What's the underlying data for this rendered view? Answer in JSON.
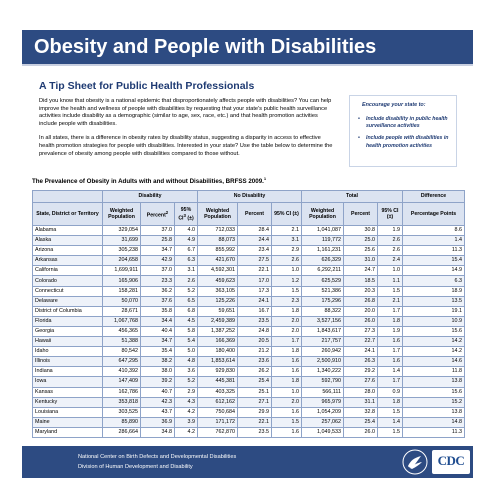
{
  "header": {
    "title": "Obesity and People with Disabilities",
    "subtitle": "A Tip Sheet for Public Health Professionals"
  },
  "intro": {
    "paragraph1": "Did you know that obesity is a national epidemic that disproportionately affects people with disabilities? You can help improve the health and wellness of people with disabilities by requesting that your state's public health surveillance activities include disability as a demographic (similar to age, sex, race, etc.) and that health promotion activities include people with disabilities.",
    "paragraph2": "In all states, there is a difference in obesity rates by disability status, suggesting a disparity in access to effective health promotion strategies for people with disabilities. Interested in your state? Use the table below to determine the prevalence of obesity among people with disabilities compared to those without."
  },
  "sidebar": {
    "title": "Encourage your state to:",
    "items": [
      "Include disability in public health surveillance activities",
      "Include people with disabilities in health promotion activities"
    ]
  },
  "table": {
    "title": "The Prevalence of Obesity in Adults with and without Disabilities, BRFSS 2009.",
    "title_note": "1",
    "groups": {
      "disability": "Disability",
      "no_disability": "No Disability",
      "total": "Total",
      "difference": "Difference"
    },
    "columns": {
      "state": "State, District or Territory",
      "dis_weighted": "Weighted Population",
      "dis_percent": "Percent",
      "dis_percent_note": "2",
      "dis_ci": "95% CI",
      "dis_ci_note": "3",
      "dis_ci_unit": "(±)",
      "nodis_weighted": "Weighted Population",
      "nodis_percent": "Percent",
      "nodis_ci": "95% CI (±)",
      "tot_weighted": "Weighted Population",
      "tot_percent": "Percent",
      "tot_ci": "95% CI (±)",
      "diff_points": "Percentage Points"
    },
    "rows": [
      [
        "Alabama",
        "329,054",
        "37.0",
        "4.0",
        "712,033",
        "28.4",
        "2.1",
        "1,041,087",
        "30.8",
        "1.9",
        "8.6"
      ],
      [
        "Alaska",
        "31,699",
        "25.8",
        "4.9",
        "88,073",
        "24.4",
        "3.1",
        "119,772",
        "25.0",
        "2.6",
        "1.4"
      ],
      [
        "Arizona",
        "305,238",
        "34.7",
        "6.7",
        "855,992",
        "23.4",
        "2.9",
        "1,161,231",
        "25.6",
        "2.6",
        "11.3"
      ],
      [
        "Arkansas",
        "204,658",
        "42.9",
        "6.3",
        "421,670",
        "27.5",
        "2.6",
        "626,329",
        "31.0",
        "2.4",
        "15.4"
      ],
      [
        "California",
        "1,699,911",
        "37.0",
        "3.1",
        "4,592,301",
        "22.1",
        "1.0",
        "6,292,211",
        "24.7",
        "1.0",
        "14.9"
      ],
      [
        "Colorado",
        "165,906",
        "23.3",
        "2.6",
        "459,623",
        "17.0",
        "1.2",
        "625,529",
        "18.5",
        "1.1",
        "6.3"
      ],
      [
        "Connecticut",
        "158,281",
        "36.2",
        "5.2",
        "363,105",
        "17.3",
        "1.5",
        "521,386",
        "20.3",
        "1.5",
        "18.9"
      ],
      [
        "Delaware",
        "50,070",
        "37.6",
        "6.5",
        "125,226",
        "24.1",
        "2.3",
        "175,296",
        "26.8",
        "2.1",
        "13.5"
      ],
      [
        "District of Columbia",
        "28,671",
        "35.8",
        "6.8",
        "59,651",
        "16.7",
        "1.8",
        "88,322",
        "20.0",
        "1.7",
        "19.1"
      ],
      [
        "Florida",
        "1,067,768",
        "34.4",
        "4.5",
        "2,459,389",
        "23.5",
        "2.0",
        "3,527,156",
        "26.0",
        "1.8",
        "10.9"
      ],
      [
        "Georgia",
        "456,365",
        "40.4",
        "5.8",
        "1,387,252",
        "24.8",
        "2.0",
        "1,843,617",
        "27.3",
        "1.9",
        "15.6"
      ],
      [
        "Hawaii",
        "51,388",
        "34.7",
        "5.4",
        "166,369",
        "20.5",
        "1.7",
        "217,757",
        "22.7",
        "1.6",
        "14.2"
      ],
      [
        "Idaho",
        "80,542",
        "35.4",
        "5.0",
        "180,400",
        "21.2",
        "1.8",
        "260,942",
        "24.1",
        "1.7",
        "14.2"
      ],
      [
        "Illinois",
        "647,295",
        "38.2",
        "4.8",
        "1,853,614",
        "23.6",
        "1.6",
        "2,500,910",
        "26.3",
        "1.6",
        "14.6"
      ],
      [
        "Indiana",
        "410,392",
        "38.0",
        "3.6",
        "929,830",
        "26.2",
        "1.6",
        "1,340,222",
        "29.2",
        "1.4",
        "11.8"
      ],
      [
        "Iowa",
        "147,409",
        "39.2",
        "5.2",
        "445,381",
        "25.4",
        "1.8",
        "592,790",
        "27.6",
        "1.7",
        "13.8"
      ],
      [
        "Kansas",
        "162,786",
        "40.7",
        "2.9",
        "403,325",
        "25.1",
        "1.0",
        "566,111",
        "28.0",
        "0.9",
        "15.6"
      ],
      [
        "Kentucky",
        "353,818",
        "42.3",
        "4.3",
        "612,162",
        "27.1",
        "2.0",
        "965,979",
        "31.1",
        "1.8",
        "15.2"
      ],
      [
        "Louisiana",
        "303,525",
        "43.7",
        "4.2",
        "750,684",
        "29.9",
        "1.6",
        "1,054,209",
        "32.8",
        "1.5",
        "13.8"
      ],
      [
        "Maine",
        "85,890",
        "36.9",
        "3.9",
        "171,172",
        "22.1",
        "1.5",
        "257,062",
        "25.4",
        "1.4",
        "14.8"
      ],
      [
        "Maryland",
        "286,664",
        "34.8",
        "4.2",
        "762,870",
        "23.5",
        "1.6",
        "1,049,533",
        "26.0",
        "1.5",
        "11.3"
      ]
    ]
  },
  "footer": {
    "line1": "National Center on Birth Defects and Developmental Disabilities",
    "line2": "Division of Human Development and Disability",
    "logo_text": "CDC"
  },
  "colors": {
    "banner": "#2d4b82",
    "accent_text": "#1f3b73",
    "table_border": "#8ea3c8",
    "header_fill": "#dbe3f1"
  },
  "icons": {
    "hhs": "hhs-eagle-icon",
    "cdc": "cdc-logo-icon"
  }
}
